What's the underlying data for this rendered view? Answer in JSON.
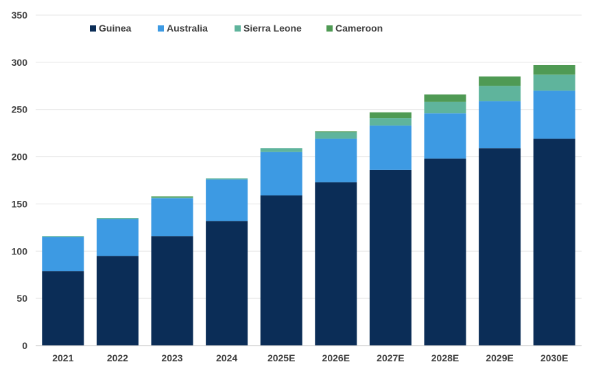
{
  "chart_data": {
    "type": "bar",
    "stacked": true,
    "title": "",
    "xlabel": "",
    "ylabel": "",
    "categories": [
      "2021",
      "2022",
      "2023",
      "2024",
      "2025E",
      "2026E",
      "2027E",
      "2028E",
      "2029E",
      "2030E"
    ],
    "series": [
      {
        "name": "Guinea",
        "color": "#0b2d57",
        "values": [
          79,
          95,
          116,
          132,
          159,
          173,
          186,
          198,
          209,
          219
        ]
      },
      {
        "name": "Australia",
        "color": "#3d9ae3",
        "values": [
          36,
          39,
          40,
          44,
          46,
          46,
          47,
          48,
          50,
          51
        ]
      },
      {
        "name": "Sierra Leone",
        "color": "#5fb49c",
        "values": [
          1,
          1,
          1,
          1,
          4,
          7,
          8,
          12,
          16,
          17
        ]
      },
      {
        "name": "Cameroon",
        "color": "#4f9a54",
        "values": [
          0,
          0,
          1,
          0,
          0,
          1,
          6,
          8,
          10,
          10
        ]
      }
    ],
    "ylim": [
      0,
      350
    ],
    "yticks": [
      0,
      50,
      100,
      150,
      200,
      250,
      300,
      350
    ],
    "grid": true,
    "legend_position": "top-left"
  }
}
